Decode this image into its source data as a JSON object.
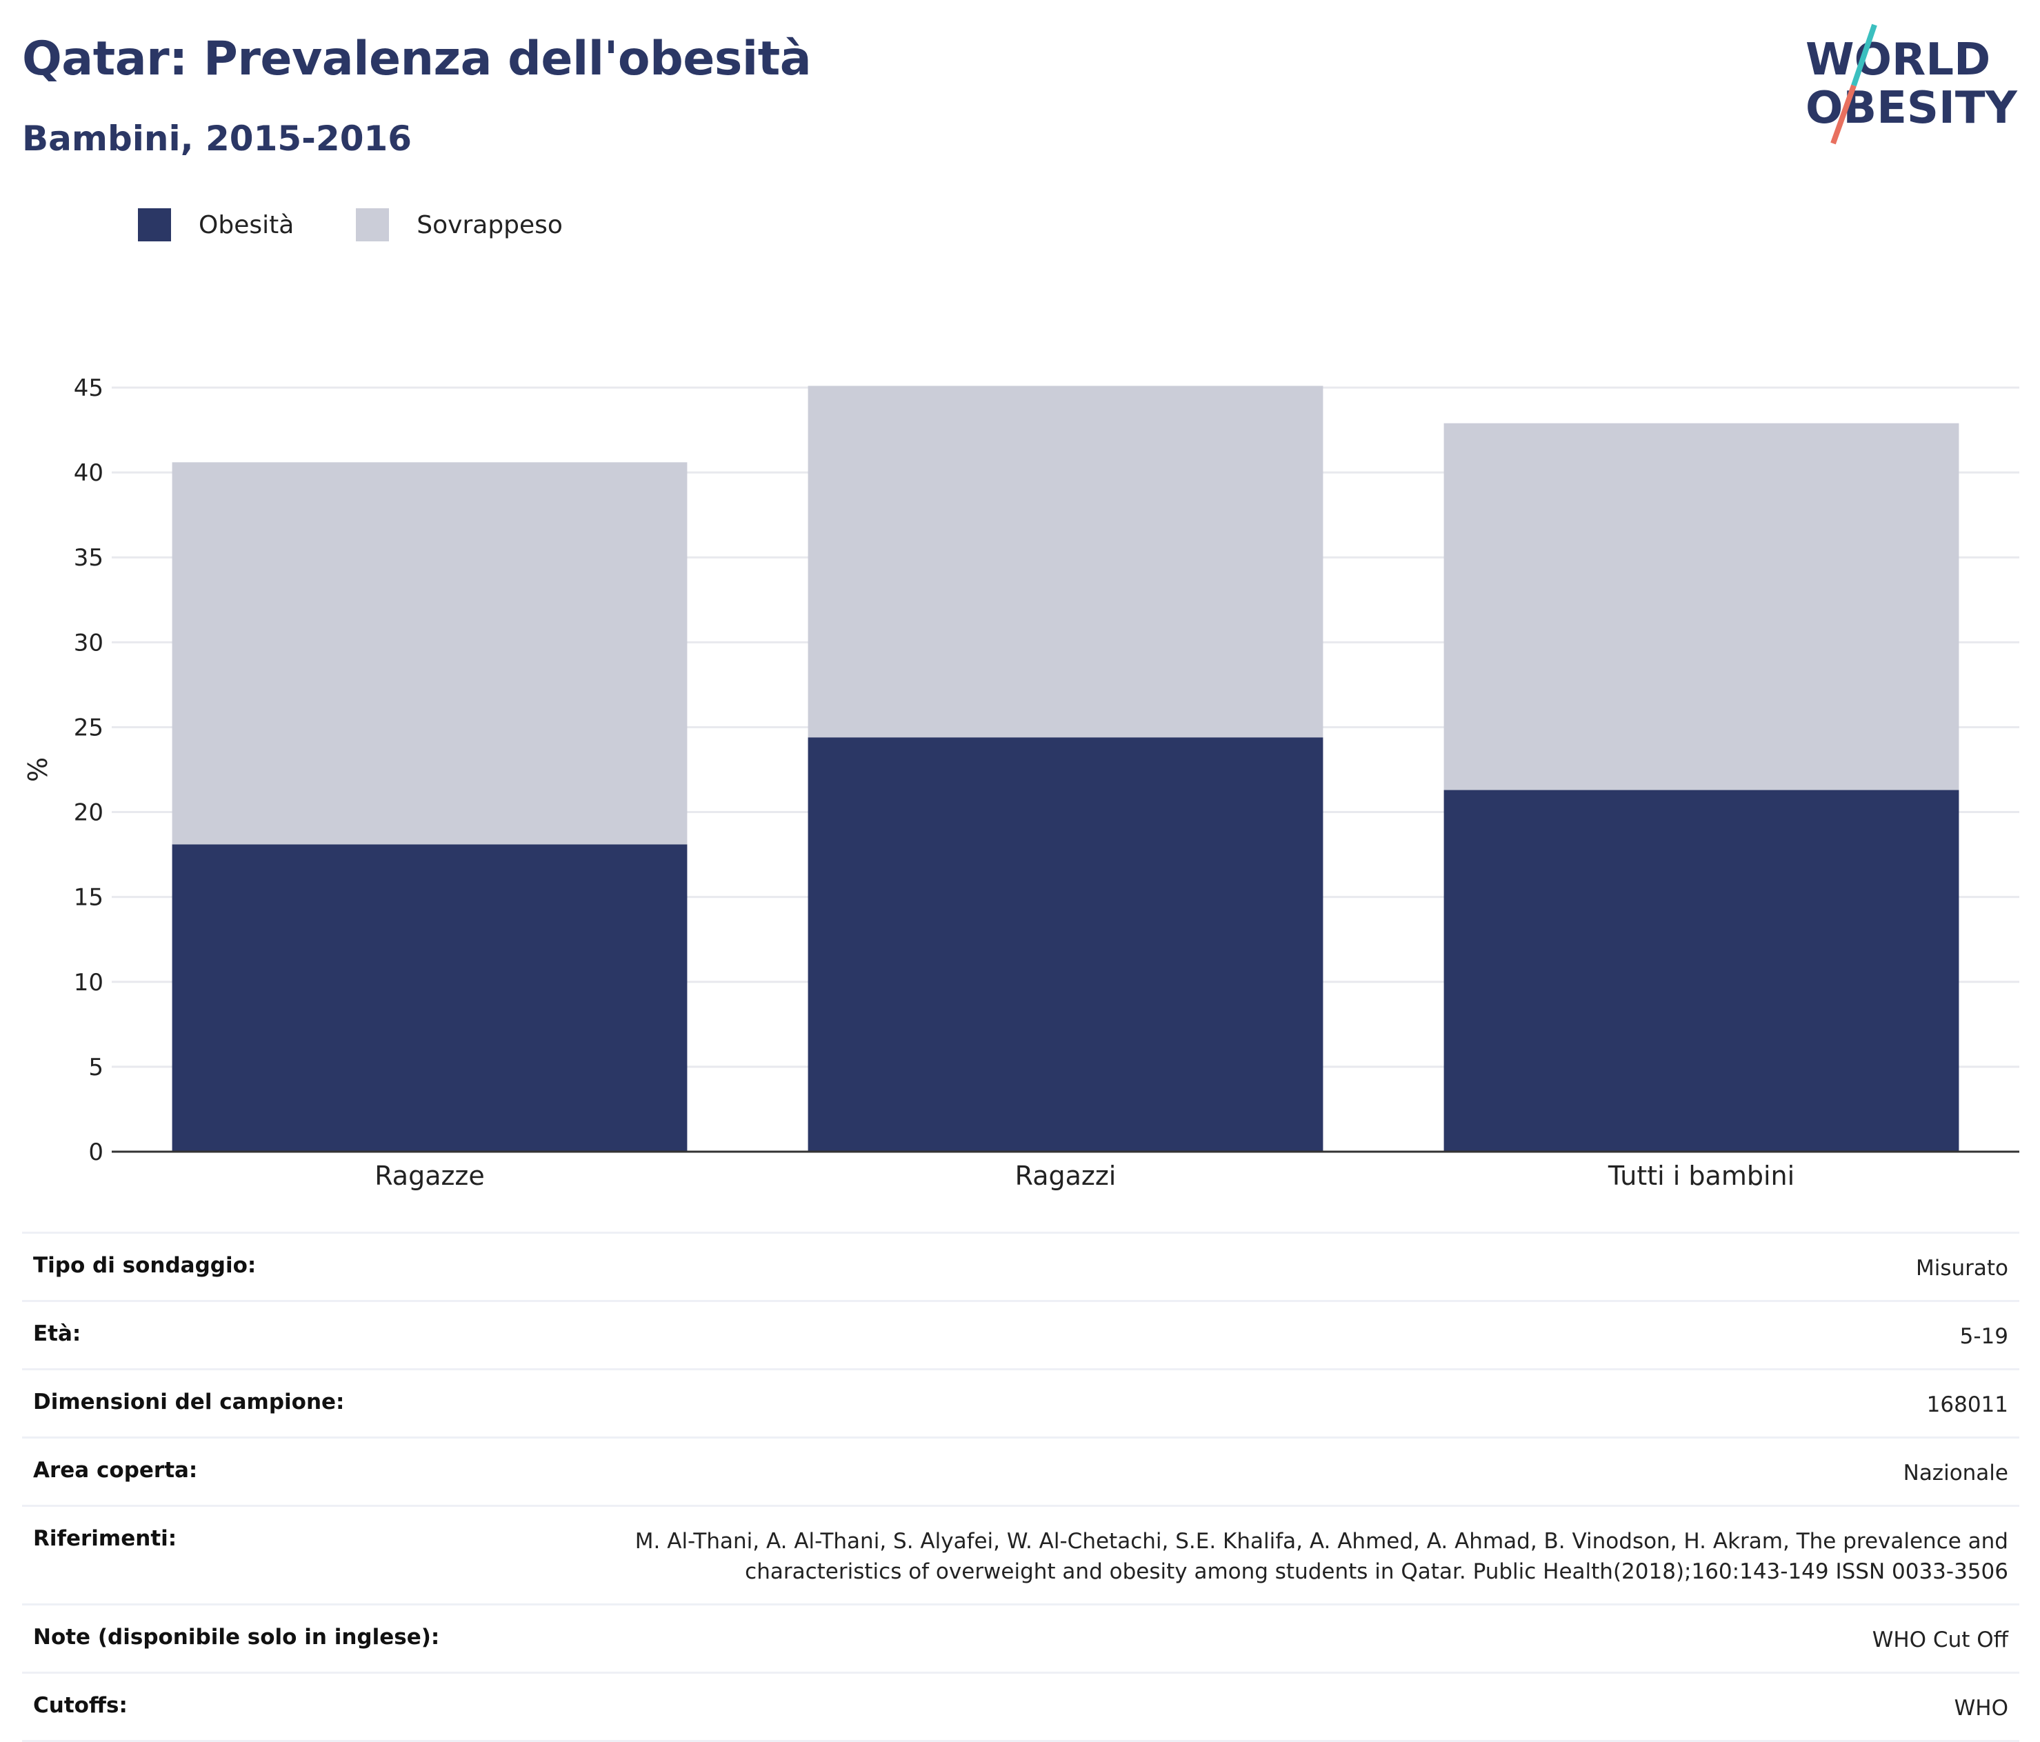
{
  "header": {
    "title": "Qatar: Prevalenza dell'obesità",
    "subtitle": "Bambini, 2015-2016"
  },
  "logo": {
    "line1": "WORLD",
    "line2": "OBESITY",
    "accent_colors": [
      "#3bbfbf",
      "#e8705f"
    ]
  },
  "colors": {
    "obesity": "#2b3765",
    "overweight": "#cbcdd8",
    "grid": "#e8e9ee",
    "axis": "#333333"
  },
  "legend": {
    "items": [
      {
        "label": "Obesità",
        "color": "#2b3765"
      },
      {
        "label": "Sovrappeso",
        "color": "#cbcdd8"
      }
    ]
  },
  "chart_data": {
    "type": "bar",
    "stacked": true,
    "categories": [
      "Ragazze",
      "Ragazzi",
      "Tutti i bambini"
    ],
    "series": [
      {
        "name": "Obesità",
        "values": [
          18.1,
          24.4,
          21.3
        ],
        "color": "#2b3765"
      },
      {
        "name": "Sovrappeso",
        "values": [
          22.5,
          20.7,
          21.6
        ],
        "color": "#cbcdd8"
      }
    ],
    "ylabel": "%",
    "ylim": [
      0,
      45
    ],
    "yticks": [
      0,
      5,
      10,
      15,
      20,
      25,
      30,
      35,
      40,
      45
    ],
    "grid": true,
    "legend_position": "top-left"
  },
  "info": [
    {
      "key": "Tipo di sondaggio:",
      "value": "Misurato"
    },
    {
      "key": "Età:",
      "value": "5-19"
    },
    {
      "key": "Dimensioni del campione:",
      "value": "168011"
    },
    {
      "key": "Area coperta:",
      "value": "Nazionale"
    },
    {
      "key": "Riferimenti:",
      "value": "M. Al-Thani, A. Al-Thani, S. Alyafei, W. Al-Chetachi, S.E. Khalifa, A. Ahmed, A. Ahmad, B. Vinodson, H. Akram, The prevalence and characteristics of overweight and obesity among students in Qatar. Public Health(2018);160:143-149 ISSN 0033-3506"
    },
    {
      "key": "Note (disponibile solo in inglese):",
      "value": "WHO Cut Off"
    },
    {
      "key": "Cutoffs:",
      "value": "WHO"
    }
  ]
}
